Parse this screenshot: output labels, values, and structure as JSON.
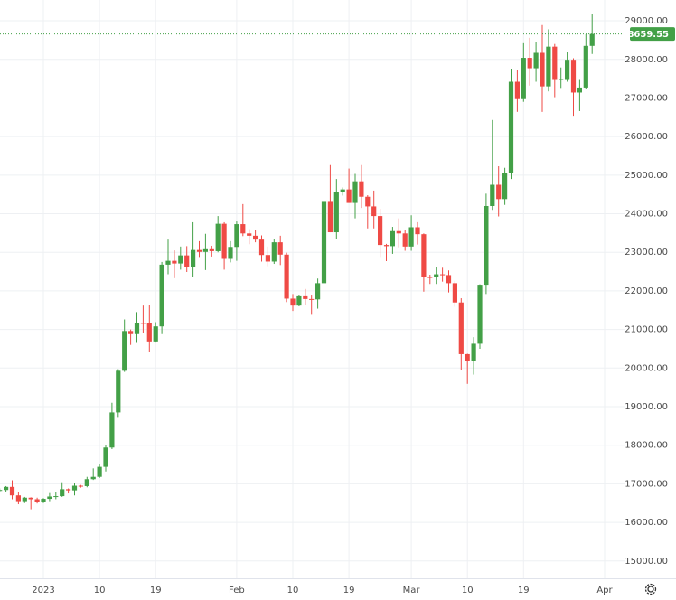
{
  "chart_data": {
    "type": "candlestick",
    "categories": [
      null,
      null,
      null,
      null,
      null,
      null,
      null,
      "2023",
      null,
      null,
      null,
      null,
      null,
      null,
      null,
      null,
      "10",
      null,
      null,
      null,
      null,
      null,
      null,
      null,
      null,
      "19",
      null,
      null,
      null,
      null,
      null,
      null,
      null,
      null,
      null,
      null,
      null,
      null,
      "Feb",
      null,
      null,
      null,
      null,
      null,
      null,
      null,
      null,
      "10",
      null,
      null,
      null,
      null,
      null,
      null,
      null,
      null,
      "19",
      null,
      null,
      null,
      null,
      null,
      null,
      null,
      null,
      null,
      "Mar",
      null,
      null,
      null,
      null,
      null,
      null,
      null,
      null,
      "10",
      null,
      null,
      null,
      null,
      null,
      null,
      null,
      null,
      "19",
      null,
      null,
      null,
      null,
      null,
      null,
      null,
      null,
      null,
      null,
      null,
      null,
      "Apr"
    ],
    "open": [
      16830,
      16840,
      16920,
      16700,
      16550,
      16640,
      16600,
      16540,
      16610,
      16670,
      16680,
      16860,
      16830,
      16950,
      16940,
      17120,
      17180,
      17440,
      17940,
      18850,
      19930,
      20960,
      20880,
      21170,
      21160,
      20690,
      21080,
      22680,
      22780,
      22710,
      22920,
      22620,
      23060,
      23010,
      23080,
      23030,
      23740,
      22830,
      23140,
      23730,
      23490,
      23430,
      23330,
      22930,
      22760,
      23260,
      22940,
      21800,
      21620,
      21860,
      21790,
      21780,
      22200,
      24330,
      23520,
      24570,
      24630,
      24280,
      24840,
      24440,
      24190,
      23940,
      23190,
      23160,
      23550,
      23490,
      23150,
      23650,
      23470,
      22360,
      22350,
      22430,
      22410,
      22200,
      21700,
      20360,
      20190,
      20630,
      22160,
      24200,
      24750,
      24380,
      25050,
      27420,
      26970,
      28040,
      27770,
      28170,
      27300,
      28330,
      27490,
      27490,
      27990,
      27140,
      27270,
      28350,
      null,
      null
    ],
    "high": [
      16880,
      16940,
      17090,
      16780,
      16660,
      16650,
      16640,
      16630,
      16760,
      16780,
      17040,
      16880,
      17020,
      16970,
      17180,
      17400,
      17500,
      18000,
      19100,
      19970,
      21260,
      21000,
      21450,
      21620,
      21640,
      21190,
      22750,
      23330,
      23050,
      23150,
      23160,
      23780,
      23290,
      23480,
      23170,
      23940,
      23780,
      23290,
      23800,
      24250,
      23600,
      23590,
      23440,
      23150,
      23350,
      23430,
      22990,
      21920,
      21900,
      22050,
      21880,
      22320,
      24380,
      25260,
      24900,
      24680,
      25170,
      25030,
      25260,
      24480,
      24600,
      24130,
      23220,
      23660,
      23880,
      23590,
      23960,
      23780,
      23490,
      22420,
      22620,
      22600,
      22530,
      22260,
      21810,
      20370,
      20800,
      22170,
      24520,
      26430,
      25230,
      25190,
      27760,
      27730,
      28420,
      28560,
      28450,
      28890,
      28780,
      28400,
      27790,
      28200,
      28030,
      27490,
      28650,
      29180,
      null,
      null
    ],
    "low": [
      16790,
      16780,
      16600,
      16470,
      16500,
      16340,
      16490,
      16500,
      16550,
      16600,
      16660,
      16750,
      16700,
      16900,
      16910,
      17100,
      17150,
      17320,
      17900,
      18710,
      19900,
      20600,
      20650,
      20900,
      20420,
      20660,
      20880,
      22430,
      22330,
      22550,
      22490,
      22350,
      22880,
      22540,
      22890,
      23000,
      22550,
      22740,
      22780,
      23420,
      23210,
      23260,
      22760,
      22640,
      22700,
      22670,
      21710,
      21480,
      21600,
      21640,
      21380,
      21540,
      22070,
      23520,
      23340,
      24470,
      24280,
      23880,
      24150,
      23620,
      23620,
      22880,
      22770,
      22960,
      23130,
      23040,
      23040,
      23200,
      21980,
      22180,
      22180,
      22240,
      21960,
      21590,
      19950,
      19590,
      19830,
      20500,
      21920,
      24100,
      23930,
      24230,
      24900,
      26640,
      26900,
      27320,
      27420,
      26640,
      27170,
      27020,
      27260,
      27420,
      26540,
      26660,
      27240,
      28140,
      null,
      null
    ],
    "close": [
      16840,
      16920,
      16700,
      16550,
      16640,
      16600,
      16540,
      16610,
      16670,
      16680,
      16860,
      16830,
      16950,
      16940,
      17120,
      17180,
      17440,
      17940,
      18850,
      19930,
      20960,
      20880,
      21170,
      21160,
      20690,
      21080,
      22680,
      22780,
      22710,
      22920,
      22620,
      23060,
      23010,
      23080,
      23030,
      23740,
      22830,
      23140,
      23730,
      23490,
      23430,
      23330,
      22930,
      22760,
      23260,
      22940,
      21800,
      21620,
      21860,
      21790,
      21780,
      22200,
      24330,
      23520,
      24570,
      24630,
      24280,
      24840,
      24440,
      24190,
      23940,
      23190,
      23160,
      23550,
      23490,
      23150,
      23650,
      23470,
      22360,
      22350,
      22430,
      22410,
      22200,
      21700,
      20360,
      20190,
      20630,
      22160,
      24200,
      24750,
      24380,
      25050,
      27420,
      26970,
      28040,
      27770,
      28170,
      27300,
      28330,
      27490,
      27490,
      27990,
      27140,
      27270,
      28350,
      28659.55,
      null,
      null
    ],
    "up_color": "#43a047",
    "down_color": "#ef4a45",
    "ylim": [
      14550,
      29540
    ],
    "yticks": [
      {
        "value": 15000,
        "label": "15000.00"
      },
      {
        "value": 16000,
        "label": "16000.00"
      },
      {
        "value": 17000,
        "label": "17000.00"
      },
      {
        "value": 18000,
        "label": "18000.00"
      },
      {
        "value": 19000,
        "label": "19000.00"
      },
      {
        "value": 20000,
        "label": "20000.00"
      },
      {
        "value": 21000,
        "label": "21000.00"
      },
      {
        "value": 22000,
        "label": "22000.00"
      },
      {
        "value": 23000,
        "label": "23000.00"
      },
      {
        "value": 24000,
        "label": "24000.00"
      },
      {
        "value": 25000,
        "label": "25000.00"
      },
      {
        "value": 26000,
        "label": "26000.00"
      },
      {
        "value": 27000,
        "label": "27000.00"
      },
      {
        "value": 28000,
        "label": "28000.00"
      },
      {
        "value": 29000,
        "label": "29000.00"
      }
    ],
    "grid": true
  }
}
